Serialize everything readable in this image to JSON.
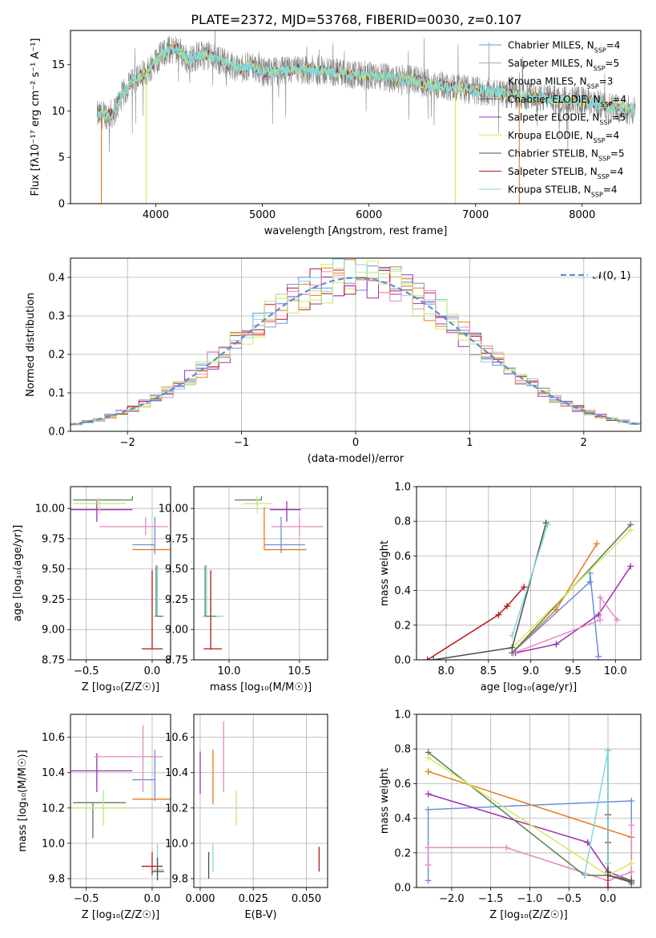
{
  "colors": [
    "#6a8fdc",
    "#9e9e9e",
    "#e0e0e0",
    "#4d4d4d",
    "#9b30b5",
    "#d7ea57",
    "#666666",
    "#b5171b",
    "#7fd9de",
    "#e57a1e",
    "#e58abf",
    "#c8e27a",
    "#5a7d5a"
  ],
  "chart_data": [
    {
      "id": "spectrum",
      "type": "line",
      "title": "PLATE=2372, MJD=53768, FIBERID=0030, z=0.107",
      "xlabel": "wavelength [Angstrom, rest frame]",
      "ylabel": "Flux [fλ10⁻¹⁷ erg cm⁻² s⁻¹ A⁻¹]",
      "xlim": [
        3200,
        8550
      ],
      "ylim": [
        0,
        18.7
      ],
      "xticks": [
        4000,
        5000,
        6000,
        7000,
        8000
      ],
      "yticks": [
        0,
        5,
        10,
        15
      ],
      "legend_position": "top-right",
      "legend": [
        {
          "label": "Chabrier MILES, N_SSP=4",
          "color": "#6a8fdc"
        },
        {
          "label": "Salpeter MILES, N_SSP=5",
          "color": "#aaaaaa"
        },
        {
          "label": "Kroupa MILES, N_SSP=3",
          "color": "#e0e0e0"
        },
        {
          "label": "Chabrier ELODIE, N_SSP=4",
          "color": "#666666"
        },
        {
          "label": "Salpeter ELODIE, N_SSP=5",
          "color": "#9b30b5"
        },
        {
          "label": "Kroupa ELODIE, N_SSP=4",
          "color": "#d7ea57"
        },
        {
          "label": "Chabrier STELIB, N_SSP=5",
          "color": "#4d4d4d"
        },
        {
          "label": "Salpeter STELIB, N_SSP=4",
          "color": "#b5171b"
        },
        {
          "label": "Kroupa STELIB, N_SSP=4",
          "color": "#7fd9de"
        }
      ],
      "continuum": {
        "x": [
          3450,
          3600,
          3700,
          3800,
          3900,
          4000,
          4100,
          4200,
          4300,
          4400,
          4500,
          4600,
          4700,
          4800,
          4900,
          5000,
          5200,
          5400,
          5600,
          5800,
          6000,
          6200,
          6400,
          6600,
          6800,
          7000,
          7200,
          7400,
          7600,
          7800,
          8000,
          8200,
          8500
        ],
        "y": [
          9.5,
          9.7,
          12.0,
          13.5,
          14.0,
          15.5,
          16.5,
          16.8,
          15.5,
          16.0,
          16.0,
          15.5,
          15.0,
          14.5,
          15.0,
          14.2,
          14.3,
          14.5,
          14.3,
          14.0,
          13.8,
          13.6,
          13.4,
          12.8,
          12.6,
          12.2,
          12.0,
          11.7,
          11.4,
          11.2,
          11.1,
          10.6,
          10.0
        ]
      },
      "drop_lines": [
        {
          "x": 3490,
          "color": "#e57a1e"
        },
        {
          "x": 3910,
          "color": "#d7ea57"
        },
        {
          "x": 6810,
          "color": "#d7ea57"
        },
        {
          "x": 7410,
          "color": "#e57a1e"
        }
      ]
    },
    {
      "id": "residuals",
      "type": "line",
      "xlabel": "(data-model)/error",
      "ylabel": "Normed distribution",
      "xlim": [
        -2.5,
        2.5
      ],
      "ylim": [
        0,
        0.45
      ],
      "xticks": [
        -2,
        -1,
        0,
        1,
        2
      ],
      "yticks": [
        0.0,
        0.1,
        0.2,
        0.3,
        0.4
      ],
      "grid": true,
      "legend_position": "top-right",
      "legend": [
        {
          "label": "𝒩(0, 1)",
          "color": "#5b8dd6"
        }
      ],
      "series_colors": [
        "#6a8fdc",
        "#e57a1e",
        "#9b30b5",
        "#d7ea57",
        "#b5171b",
        "#7fd9de",
        "#e58abf",
        "#c8e27a"
      ],
      "bin_width": 0.1
    },
    {
      "id": "age_vs_Z",
      "type": "scatter",
      "xlabel": "Z [log₁₀(Z/Z☉)]",
      "ylabel": "age  [log₁₀(age/yr)]",
      "xlim": [
        -0.62,
        0.14
      ],
      "ylim": [
        8.75,
        10.18
      ],
      "xticks": [
        -0.5,
        0.0
      ],
      "yticks": [
        8.75,
        9.0,
        9.25,
        9.5,
        9.75,
        10.0
      ],
      "grid": true,
      "points": [
        {
          "x": 0.02,
          "y": 9.7,
          "xerr": [
            0.17,
            0.0
          ],
          "yerr": [
            0.08,
            0.23
          ],
          "color": "#6a8fdc"
        },
        {
          "x": 0.15,
          "y": 9.66,
          "xerr": [
            0.3,
            0.0
          ],
          "yerr": [
            0.0,
            0.35
          ],
          "color": "#e57a1e"
        },
        {
          "x": -0.42,
          "y": 9.99,
          "xerr": [
            0.2,
            0.27
          ],
          "yerr": [
            0.1,
            0.07
          ],
          "color": "#9b30b5"
        },
        {
          "x": -0.05,
          "y": 9.85,
          "xerr": [
            0.35,
            0.17
          ],
          "yerr": [
            0.07,
            0.08
          ],
          "color": "#e58abf"
        },
        {
          "x": -0.15,
          "y": 10.07,
          "xerr": [
            0.45,
            0.0
          ],
          "yerr": [
            0.0,
            0.03
          ],
          "color": "#5a7d5a"
        },
        {
          "x": -0.4,
          "y": 10.04,
          "xerr": [
            0.2,
            0.2
          ],
          "yerr": [
            0.08,
            0.05
          ],
          "color": "#c8e27a"
        },
        {
          "x": 0.0,
          "y": 8.84,
          "xerr": [
            0.08,
            0.08
          ],
          "yerr": [
            0.0,
            0.65
          ],
          "color": "#b5171b"
        },
        {
          "x": 0.04,
          "y": 9.11,
          "xerr": [
            0.04,
            0.05
          ],
          "yerr": [
            0.0,
            0.42
          ],
          "color": "#7fd9de"
        },
        {
          "x": 0.03,
          "y": 9.11,
          "xerr": [
            0.0,
            0.05
          ],
          "yerr": [
            0.0,
            0.42
          ],
          "color": "#5a7d5a"
        }
      ]
    },
    {
      "id": "age_vs_mass",
      "type": "scatter",
      "xlabel": "mass [log₁₀(M/M☉)]",
      "xlim": [
        9.75,
        10.7
      ],
      "ylim": [
        8.75,
        10.18
      ],
      "xticks": [
        10.0,
        10.5
      ],
      "yticks": [
        8.75,
        9.0,
        9.25,
        9.5,
        9.75,
        10.0
      ],
      "grid": true,
      "points": [
        {
          "x": 10.37,
          "y": 9.7,
          "xerr": [
            0.12,
            0.17
          ],
          "yerr": [
            0.07,
            0.23
          ],
          "color": "#6a8fdc"
        },
        {
          "x": 10.25,
          "y": 9.66,
          "xerr": [
            0.0,
            0.3
          ],
          "yerr": [
            0.0,
            0.35
          ],
          "color": "#e57a1e"
        },
        {
          "x": 10.41,
          "y": 9.99,
          "xerr": [
            0.12,
            0.1
          ],
          "yerr": [
            0.1,
            0.07
          ],
          "color": "#9b30b5"
        },
        {
          "x": 10.5,
          "y": 9.85,
          "xerr": [
            0.2,
            0.17
          ],
          "yerr": [
            0.07,
            0.08
          ],
          "color": "#e58abf"
        },
        {
          "x": 10.23,
          "y": 10.07,
          "xerr": [
            0.19,
            0.0
          ],
          "yerr": [
            0.0,
            0.03
          ],
          "color": "#5a7d5a"
        },
        {
          "x": 10.2,
          "y": 10.04,
          "xerr": [
            0.1,
            0.1
          ],
          "yerr": [
            0.08,
            0.06
          ],
          "color": "#c8e27a"
        },
        {
          "x": 9.87,
          "y": 8.84,
          "xerr": [
            0.05,
            0.08
          ],
          "yerr": [
            0.0,
            0.65
          ],
          "color": "#b5171b"
        },
        {
          "x": 9.84,
          "y": 9.11,
          "xerr": [
            0.03,
            0.12
          ],
          "yerr": [
            0.0,
            0.42
          ],
          "color": "#7fd9de"
        },
        {
          "x": 9.83,
          "y": 9.11,
          "xerr": [
            0.0,
            0.08
          ],
          "yerr": [
            0.0,
            0.42
          ],
          "color": "#5a7d5a"
        }
      ]
    },
    {
      "id": "mass_weight_vs_age",
      "type": "line",
      "xlabel": "age  [log₁₀(age/yr)]",
      "ylabel": "mass weight",
      "xlim": [
        7.65,
        10.3
      ],
      "ylim": [
        0.0,
        1.0
      ],
      "xticks": [
        8.0,
        8.5,
        9.0,
        9.5,
        10.0
      ],
      "yticks": [
        0.0,
        0.2,
        0.4,
        0.6,
        0.8,
        1.0
      ],
      "grid": true,
      "series": [
        {
          "color": "#6a8fdc",
          "x": [
            8.78,
            9.7,
            9.7,
            9.8
          ],
          "y": [
            0.04,
            0.45,
            0.5,
            0.02
          ]
        },
        {
          "color": "#e57a1e",
          "x": [
            8.78,
            9.3,
            9.78
          ],
          "y": [
            0.04,
            0.29,
            0.67
          ]
        },
        {
          "color": "#9b30b5",
          "x": [
            8.82,
            9.3,
            9.8,
            10.18
          ],
          "y": [
            0.04,
            0.09,
            0.26,
            0.54
          ]
        },
        {
          "color": "#e58abf",
          "x": [
            8.8,
            9.82,
            9.82,
            10.02
          ],
          "y": [
            0.04,
            0.23,
            0.36,
            0.23
          ]
        },
        {
          "color": "#5a7d5a",
          "x": [
            8.78,
            10.18
          ],
          "y": [
            0.04,
            0.78
          ]
        },
        {
          "color": "#d7ea57",
          "x": [
            8.78,
            10.18
          ],
          "y": [
            0.07,
            0.75
          ]
        },
        {
          "color": "#b5171b",
          "x": [
            7.78,
            8.62,
            8.72,
            8.92
          ],
          "y": [
            0.0,
            0.26,
            0.31,
            0.42
          ]
        },
        {
          "color": "#4d4d4d",
          "x": [
            7.85,
            8.78,
            9.18
          ],
          "y": [
            0.0,
            0.07,
            0.79
          ]
        },
        {
          "color": "#7fd9de",
          "x": [
            8.78,
            9.2
          ],
          "y": [
            0.14,
            0.78
          ]
        }
      ]
    },
    {
      "id": "mass_vs_Z",
      "type": "scatter",
      "xlabel": "Z [log₁₀(Z/Z☉)]",
      "ylabel": "mass [log₁₀(M/M☉)]",
      "xlim": [
        -0.62,
        0.14
      ],
      "ylim": [
        9.75,
        10.73
      ],
      "xticks": [
        -0.5,
        0.0
      ],
      "yticks": [
        9.8,
        10.0,
        10.2,
        10.4,
        10.6
      ],
      "grid": true,
      "points": [
        {
          "x": 0.02,
          "y": 10.36,
          "xerr": [
            0.17,
            0.0
          ],
          "yerr": [
            0.12,
            0.17
          ],
          "color": "#6a8fdc"
        },
        {
          "x": 0.15,
          "y": 10.25,
          "xerr": [
            0.3,
            0.0
          ],
          "yerr": [
            0.0,
            0.35
          ],
          "color": "#e57a1e"
        },
        {
          "x": -0.42,
          "y": 10.41,
          "xerr": [
            0.2,
            0.27
          ],
          "yerr": [
            0.12,
            0.1
          ],
          "color": "#9b30b5"
        },
        {
          "x": -0.07,
          "y": 10.49,
          "xerr": [
            0.37,
            0.15
          ],
          "yerr": [
            0.2,
            0.18
          ],
          "color": "#e58abf"
        },
        {
          "x": -0.45,
          "y": 10.23,
          "xerr": [
            0.15,
            0.25
          ],
          "yerr": [
            0.2,
            0.0
          ],
          "color": "#5a7d5a"
        },
        {
          "x": -0.37,
          "y": 10.2,
          "xerr": [
            0.23,
            0.22
          ],
          "yerr": [
            0.1,
            0.1
          ],
          "color": "#c8e27a"
        },
        {
          "x": 0.0,
          "y": 9.87,
          "xerr": [
            0.08,
            0.08
          ],
          "yerr": [
            0.05,
            0.08
          ],
          "color": "#b5171b"
        },
        {
          "x": 0.04,
          "y": 9.85,
          "xerr": [
            0.04,
            0.05
          ],
          "yerr": [
            0.03,
            0.15
          ],
          "color": "#7fd9de"
        },
        {
          "x": 0.04,
          "y": 9.84,
          "xerr": [
            0.04,
            0.05
          ],
          "yerr": [
            0.05,
            0.08
          ],
          "color": "#4d4d4d"
        }
      ]
    },
    {
      "id": "mass_vs_ebv",
      "type": "scatter",
      "xlabel": "E(B-V)",
      "xlim": [
        -0.003,
        0.06
      ],
      "ylim": [
        9.75,
        10.73
      ],
      "xticks": [
        0.0,
        0.025,
        0.05
      ],
      "yticks": [
        9.8,
        10.0,
        10.2,
        10.4,
        10.6
      ],
      "grid": true,
      "points": [
        {
          "x": 0.0,
          "y": 10.41,
          "yerr": [
            0.13,
            0.11
          ],
          "color": "#9b30b5"
        },
        {
          "x": 0.006,
          "y": 10.36,
          "yerr": [
            0.14,
            0.17
          ],
          "color": "#e57a1e"
        },
        {
          "x": 0.011,
          "y": 10.49,
          "yerr": [
            0.2,
            0.2
          ],
          "color": "#e58abf"
        },
        {
          "x": 0.017,
          "y": 10.2,
          "yerr": [
            0.1,
            0.1
          ],
          "color": "#c8e27a"
        },
        {
          "x": 0.006,
          "y": 9.9,
          "yerr": [
            0.06,
            0.1
          ],
          "color": "#7fd9de"
        },
        {
          "x": 0.004,
          "y": 9.88,
          "yerr": [
            0.08,
            0.07
          ],
          "color": "#4d4d4d"
        },
        {
          "x": 0.056,
          "y": 9.91,
          "yerr": [
            0.07,
            0.07
          ],
          "color": "#b5171b"
        }
      ]
    },
    {
      "id": "mass_weight_vs_Z",
      "type": "line",
      "xlabel": "Z [log₁₀(Z/Z☉)]",
      "ylabel": "mass weight",
      "xlim": [
        -2.45,
        0.42
      ],
      "ylim": [
        0.0,
        1.0
      ],
      "xticks": [
        -2.0,
        -1.5,
        -1.0,
        -0.5,
        0.0
      ],
      "yticks": [
        0.0,
        0.2,
        0.4,
        0.6,
        0.8,
        1.0
      ],
      "grid": true,
      "series": [
        {
          "color": "#6a8fdc",
          "x": [
            -2.3,
            -2.3,
            0.3,
            0.3
          ],
          "y": [
            0.04,
            0.45,
            0.5,
            0.02
          ]
        },
        {
          "color": "#e57a1e",
          "x": [
            -2.3,
            0.3,
            0.3
          ],
          "y": [
            0.67,
            0.29,
            0.04
          ]
        },
        {
          "color": "#9b30b5",
          "x": [
            -2.3,
            -0.26,
            0.0,
            0.3
          ],
          "y": [
            0.54,
            0.26,
            0.09,
            0.04
          ]
        },
        {
          "color": "#e58abf",
          "x": [
            -2.3,
            -2.3,
            -1.3,
            0.0,
            0.3,
            0.3
          ],
          "y": [
            0.13,
            0.23,
            0.23,
            0.04,
            0.09,
            0.36
          ]
        },
        {
          "color": "#5a7d5a",
          "x": [
            -2.3,
            -0.3,
            0.0,
            0.3
          ],
          "y": [
            0.78,
            0.07,
            0.07,
            0.04
          ]
        },
        {
          "color": "#d7ea57",
          "x": [
            -2.3,
            0.0,
            0.3
          ],
          "y": [
            0.75,
            0.07,
            0.14
          ]
        },
        {
          "color": "#b5171b",
          "x": [
            0.0,
            0.0,
            0.0
          ],
          "y": [
            0.0,
            0.26,
            0.42
          ]
        },
        {
          "color": "#4d4d4d",
          "x": [
            0.0,
            0.0,
            0.3
          ],
          "y": [
            0.79,
            0.07,
            0.03
          ]
        },
        {
          "color": "#7fd9de",
          "x": [
            -0.3,
            0.0,
            0.0
          ],
          "y": [
            0.07,
            0.79,
            0.14
          ]
        }
      ]
    }
  ]
}
